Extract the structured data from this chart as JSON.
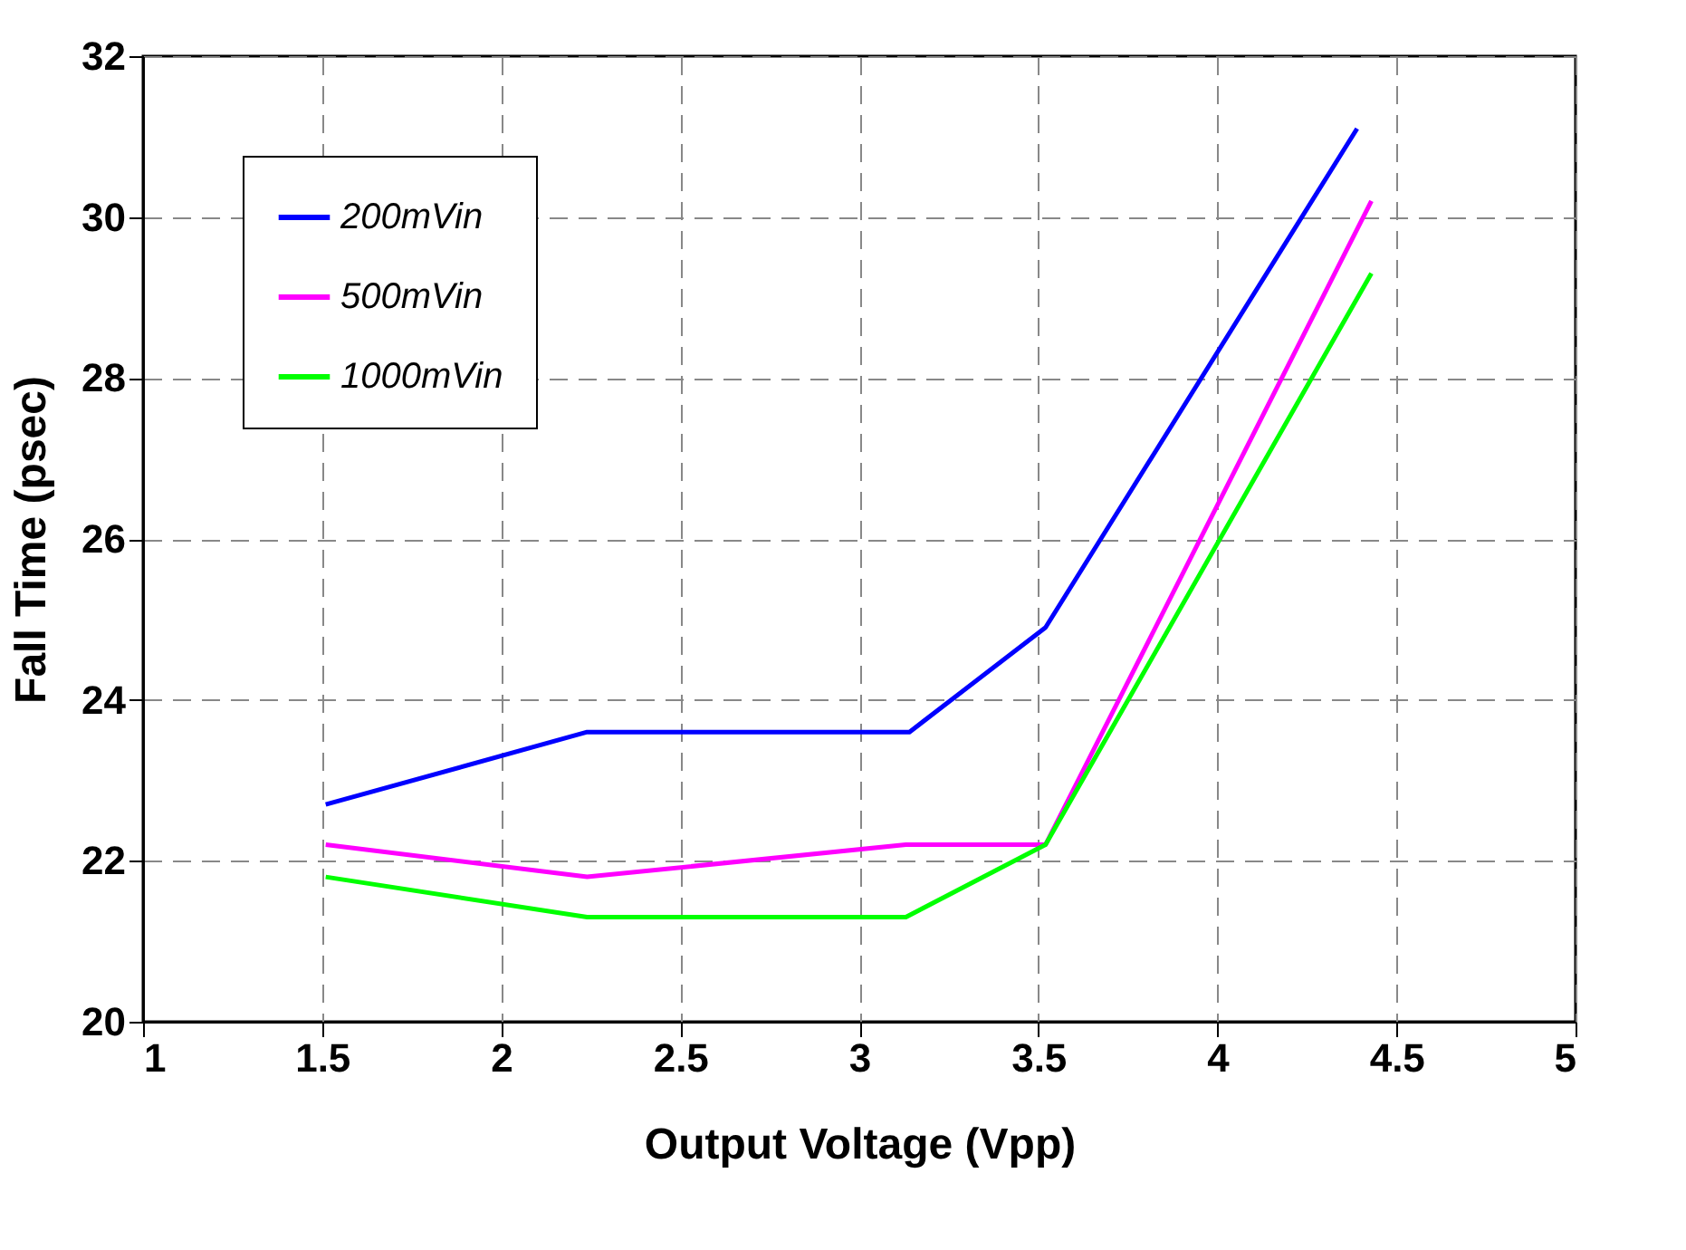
{
  "chart_data": {
    "type": "line",
    "xlabel": "Output Voltage (Vpp)",
    "ylabel": "Fall Time (psec)",
    "xlim": [
      1,
      5
    ],
    "xticks": [
      1,
      1.5,
      2,
      2.5,
      3,
      3.5,
      4,
      4.5,
      5
    ],
    "ylim": [
      20,
      32
    ],
    "yticks": [
      20,
      22,
      24,
      26,
      28,
      30,
      32
    ],
    "grid": true,
    "legend": "top left",
    "marker": "none",
    "line_style": "solid",
    "series": [
      {
        "name": "200mVin",
        "color": "#0000ff",
        "x": [
          1.51,
          2.24,
          3.14,
          3.52,
          4.39
        ],
        "values": [
          22.7,
          23.6,
          23.6,
          24.9,
          31.1
        ]
      },
      {
        "name": "500mVin",
        "color": "#ff00ff",
        "x": [
          1.51,
          2.24,
          3.13,
          3.52,
          4.43
        ],
        "values": [
          22.2,
          21.8,
          22.2,
          22.2,
          30.2
        ]
      },
      {
        "name": "1000mVin",
        "color": "#00ff00",
        "x": [
          1.51,
          2.24,
          3.13,
          3.52,
          4.43
        ],
        "values": [
          21.8,
          21.3,
          21.3,
          22.2,
          29.3
        ]
      }
    ]
  }
}
